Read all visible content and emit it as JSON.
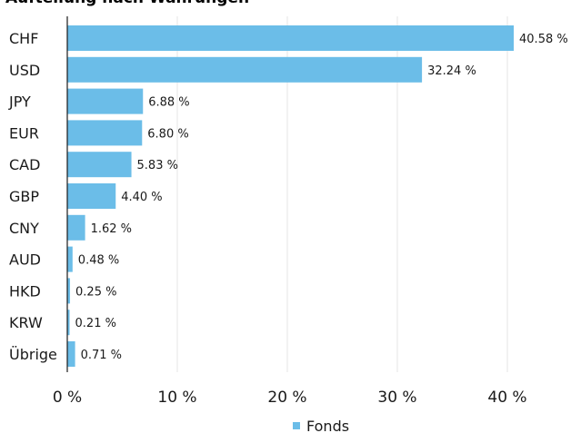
{
  "chart_data": {
    "type": "bar",
    "orientation": "horizontal",
    "title": "Aufteilung nach Währungen",
    "categories": [
      "CHF",
      "USD",
      "JPY",
      "EUR",
      "CAD",
      "GBP",
      "CNY",
      "AUD",
      "HKD",
      "KRW",
      "Übrige"
    ],
    "series": [
      {
        "name": "Fonds",
        "color": "#6bbde8",
        "values": [
          40.58,
          32.24,
          6.88,
          6.8,
          5.83,
          4.4,
          1.62,
          0.48,
          0.25,
          0.21,
          0.71
        ],
        "value_labels": [
          "40.58 %",
          "32.24 %",
          "6.88 %",
          "6.80 %",
          "5.83 %",
          "4.40 %",
          "1.62 %",
          "0.48 %",
          "0.25 %",
          "0.21 %",
          "0.71 %"
        ]
      }
    ],
    "xlim": [
      0,
      45
    ],
    "x_ticks": [
      0,
      10,
      20,
      30,
      40
    ],
    "x_tick_labels": [
      "0 %",
      "10 %",
      "20 %",
      "30 %",
      "40 %"
    ],
    "grid": true,
    "legend_position": "bottom-center"
  }
}
